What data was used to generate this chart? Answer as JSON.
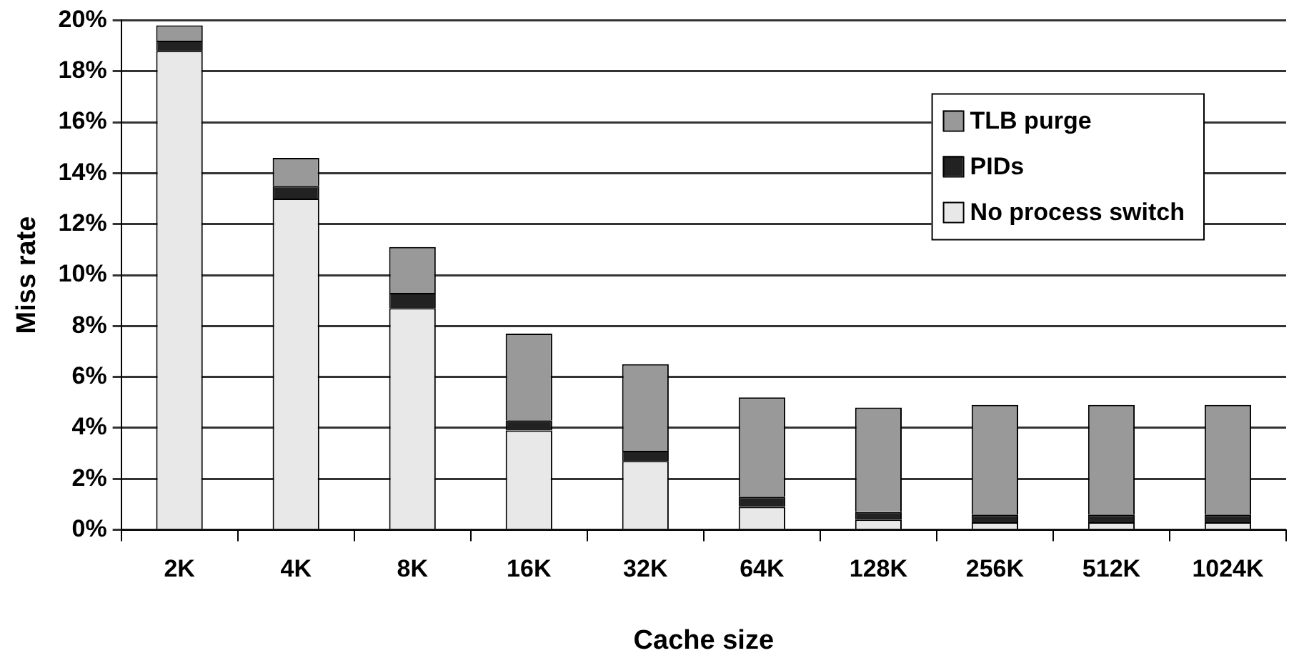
{
  "chart_data": {
    "type": "bar",
    "stacked": true,
    "xlabel": "Cache size",
    "ylabel": "Miss rate",
    "categories": [
      "2K",
      "4K",
      "8K",
      "16K",
      "32K",
      "64K",
      "128K",
      "256K",
      "512K",
      "1024K"
    ],
    "series": [
      {
        "name": "No process switch",
        "color": "#e8e8e8",
        "values": [
          18.8,
          13.0,
          8.7,
          3.9,
          2.7,
          0.9,
          0.4,
          0.3,
          0.3,
          0.3
        ]
      },
      {
        "name": "PIDs",
        "color": "#222222",
        "values": [
          0.4,
          0.5,
          0.6,
          0.4,
          0.4,
          0.4,
          0.3,
          0.3,
          0.3,
          0.3
        ]
      },
      {
        "name": "TLB purge",
        "color": "#999999",
        "values": [
          0.6,
          1.1,
          1.8,
          3.4,
          3.4,
          3.9,
          4.1,
          4.3,
          4.3,
          4.3
        ]
      }
    ],
    "ylim": [
      0,
      20
    ],
    "yticks": [
      {
        "value": 0,
        "label": "0%"
      },
      {
        "value": 2,
        "label": "2%"
      },
      {
        "value": 4,
        "label": "4%"
      },
      {
        "value": 6,
        "label": "6%"
      },
      {
        "value": 8,
        "label": "8%"
      },
      {
        "value": 10,
        "label": "10%"
      },
      {
        "value": 12,
        "label": "12%"
      },
      {
        "value": 14,
        "label": "14%"
      },
      {
        "value": 16,
        "label": "16%"
      },
      {
        "value": 18,
        "label": "18%"
      },
      {
        "value": 20,
        "label": "20%"
      }
    ],
    "grid": "y",
    "legend": "top right"
  }
}
